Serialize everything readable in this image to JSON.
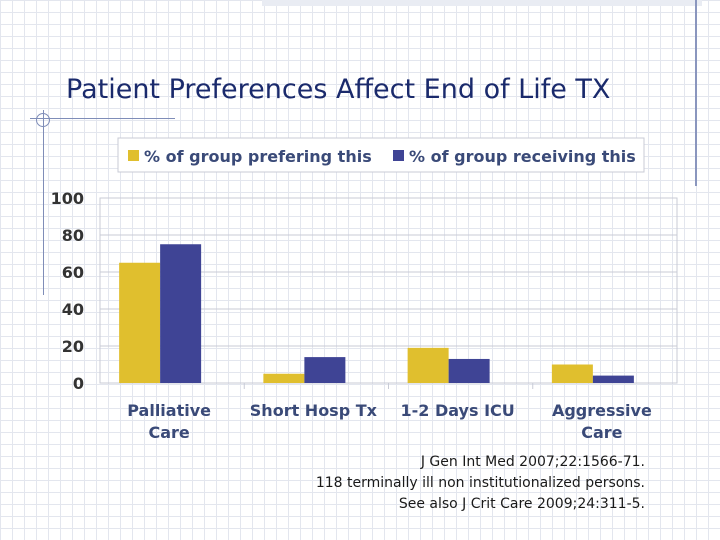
{
  "slide": {
    "title": "Patient Preferences Affect End of Life TX",
    "source_lines": [
      "J Gen Int Med 2007;22:1566-71.",
      "118 terminally ill non institutionalized persons.",
      "See also J Crit Care 2009;24:311-5."
    ]
  },
  "chart_data": {
    "type": "bar",
    "categories": [
      "Palliative Care",
      "Short Hosp Tx",
      "1-2 Days ICU",
      "Aggressive Care"
    ],
    "series": [
      {
        "name": "% of group prefering this",
        "color": "#e0bf2e",
        "values": [
          65,
          5,
          19,
          10
        ]
      },
      {
        "name": "% of group receiving this",
        "color": "#3f4495",
        "values": [
          75,
          14,
          13,
          4
        ]
      }
    ],
    "ylim": [
      0,
      100
    ],
    "yticks": [
      0,
      20,
      40,
      60,
      80,
      100
    ],
    "grid": true,
    "legend_position": "top",
    "title": "",
    "xlabel": "",
    "ylabel": ""
  }
}
